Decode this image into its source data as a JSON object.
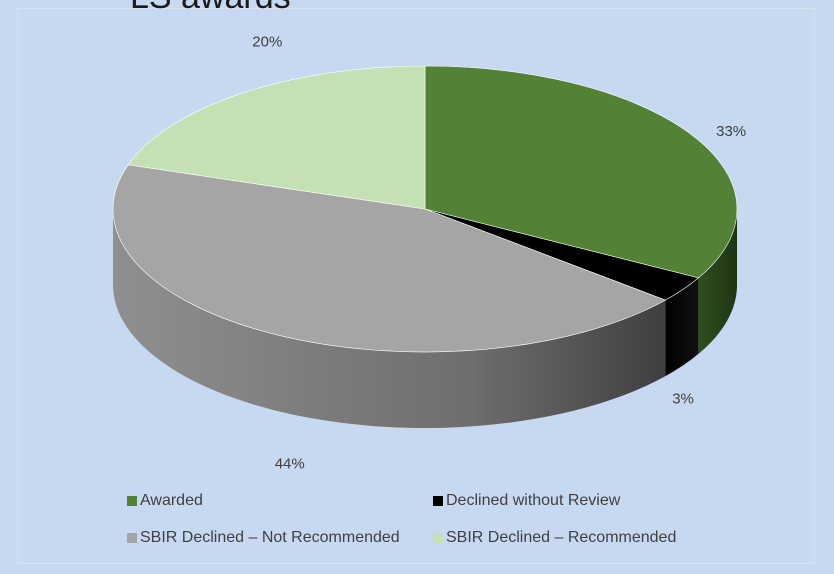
{
  "chart_data": {
    "type": "pie",
    "title": "LS awards",
    "categories": [
      "Awarded",
      "Declined without Review",
      "SBIR Declined – Not Recommended",
      "SBIR Declined – Recommended"
    ],
    "values": [
      33,
      3,
      44,
      20
    ],
    "value_labels": [
      "33%",
      "3%",
      "44%",
      "20%"
    ],
    "colors": [
      "#538135",
      "#000000",
      "#a5a5a5",
      "#c5e0b4"
    ],
    "style": "3d",
    "legend_position": "bottom"
  }
}
